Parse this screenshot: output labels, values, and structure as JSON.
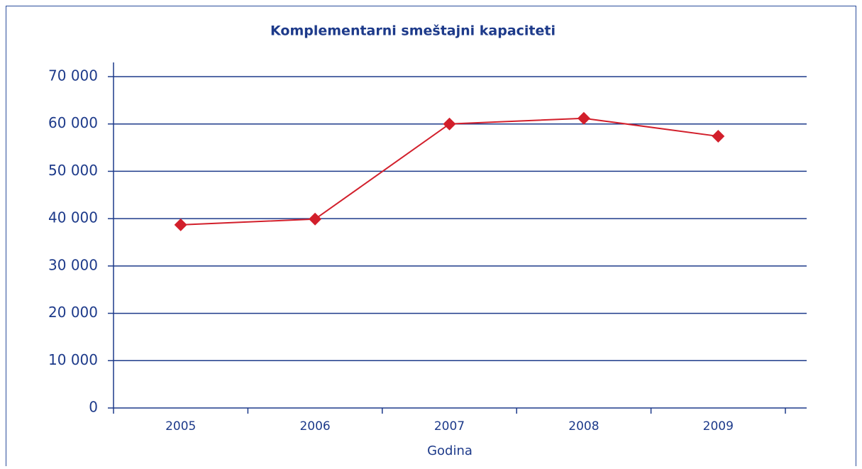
{
  "chart_data": {
    "type": "line",
    "title": "Komplementarni smeštajni kapaciteti",
    "x_label": "Godina",
    "categories": [
      "2005",
      "2006",
      "2007",
      "2008",
      "2009"
    ],
    "values": [
      38700,
      39900,
      60000,
      61200,
      57400
    ],
    "color": "#d21f2b",
    "ylim": [
      0,
      70000
    ],
    "yticks": [
      0,
      {
        "value": 10000,
        "label": "10 000"
      },
      {
        "value": 20000,
        "label": "20 000"
      },
      {
        "value": 30000,
        "label": "30 000"
      },
      {
        "value": 40000,
        "label": "40 000"
      },
      {
        "value": 50000,
        "label": "50 000"
      },
      {
        "value": 60000,
        "label": "60 000"
      },
      {
        "value": 70000,
        "label": "70 000"
      }
    ],
    "grid": true
  }
}
